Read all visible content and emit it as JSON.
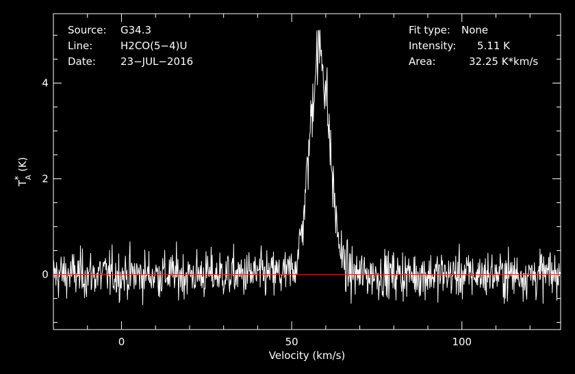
{
  "chart_data": {
    "type": "line",
    "xlabel": "Velocity (km/s)",
    "ylabel_main": "T",
    "ylabel_sub": "A",
    "ylabel_sup": "*",
    "ylabel_unit": "(K)",
    "xlim": [
      -20,
      129
    ],
    "ylim": [
      -1.15,
      5.45
    ],
    "xticks": [
      0,
      50,
      100
    ],
    "yticks": [
      0,
      2,
      4
    ],
    "baseline": 0,
    "baseline_color": "#e0201a",
    "line_color": "#ffffff",
    "noise_rms": 0.25,
    "peak": {
      "center": 58.2,
      "amplitude": 4.7,
      "sigma": 2.9,
      "max": 5.11
    },
    "channel_width": 0.15,
    "info_left": [
      {
        "key": "Source:",
        "value": "G34.3"
      },
      {
        "key": "Line:",
        "value": "H2CO(5−4)U"
      },
      {
        "key": "Date:",
        "value": "23−JUL−2016"
      }
    ],
    "info_right": [
      {
        "key": "Fit type:",
        "value": "None"
      },
      {
        "key": "Intensity:",
        "value": "5.11 K"
      },
      {
        "key": "Area:",
        "value": "32.25 K*km/s"
      }
    ]
  }
}
